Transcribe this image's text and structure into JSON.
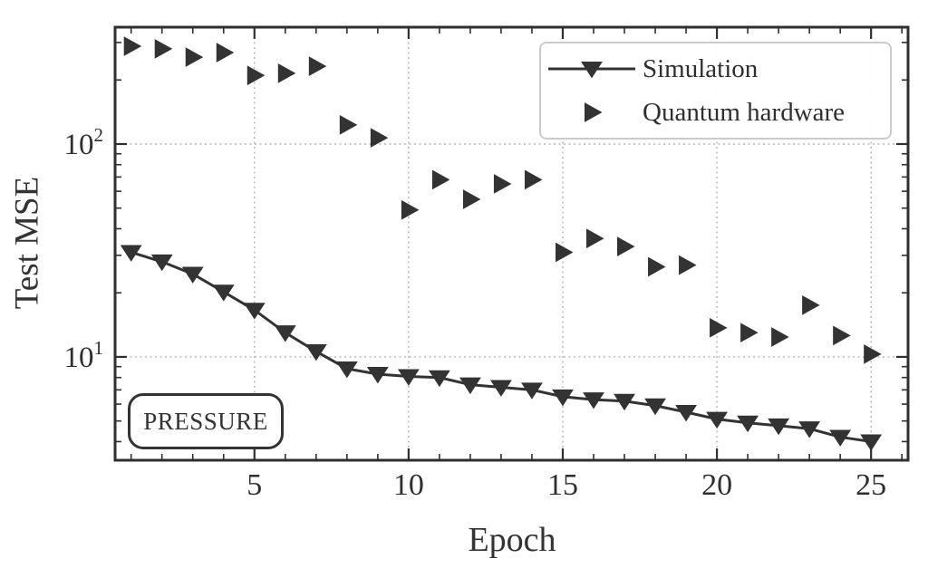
{
  "chart_data": {
    "type": "scatter",
    "title": "",
    "xlabel": "Epoch",
    "ylabel": "Test MSE",
    "yscale": "log",
    "xlim": [
      0.48,
      26.2
    ],
    "ylim": [
      3.27,
      354
    ],
    "x_major_ticks": [
      5,
      10,
      15,
      20,
      25
    ],
    "y_major_ticks": [
      10,
      100
    ],
    "y_minor_ticks": [
      4,
      5,
      6,
      7,
      8,
      9,
      20,
      30,
      40,
      50,
      60,
      70,
      80,
      90,
      200,
      300
    ],
    "grid": "major-only, dashed",
    "legend_position": "upper right",
    "annotation": "PRESSURE",
    "x": [
      1,
      2,
      3,
      4,
      5,
      6,
      7,
      8,
      9,
      10,
      11,
      12,
      13,
      14,
      15,
      16,
      17,
      18,
      19,
      20,
      21,
      22,
      23,
      24,
      25
    ],
    "series": [
      {
        "name": "Simulation",
        "marker": "triangle-down",
        "line": true,
        "values": [
          31,
          28,
          24.5,
          20.2,
          16.6,
          13.0,
          10.6,
          8.8,
          8.3,
          8.1,
          8.0,
          7.4,
          7.2,
          7.0,
          6.5,
          6.3,
          6.2,
          5.9,
          5.5,
          5.1,
          4.9,
          4.75,
          4.6,
          4.2,
          4.0
        ]
      },
      {
        "name": "Quantum hardware",
        "marker": "triangle-right",
        "line": false,
        "values": [
          288,
          280,
          256,
          269,
          210,
          215,
          232,
          123,
          107,
          49,
          68,
          55,
          65,
          68,
          31,
          36,
          33,
          26.5,
          27,
          13.7,
          13.0,
          12.4,
          17.5,
          12.6,
          10.3
        ]
      }
    ]
  },
  "colors": {
    "ink": "#2f2f2f",
    "marker": "#333333",
    "grid": "#b5b5b5",
    "legend_border": "#cbcbcb",
    "background": "#ffffff"
  }
}
